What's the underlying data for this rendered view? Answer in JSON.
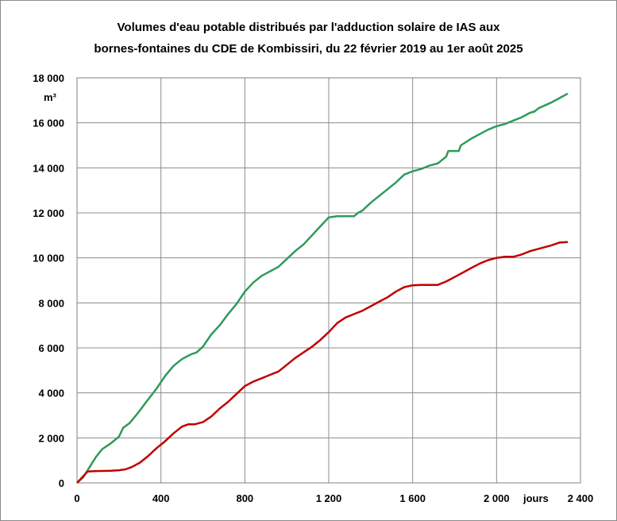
{
  "chart_data": {
    "type": "line",
    "title": "Volumes d'eau potable distribués par l'adduction solaire de IAS aux",
    "subtitle": "bornes-fontaines du CDE de Kombissiri, du 22 février 2019 au 1er août 2025",
    "xlabel": "jours",
    "ylabel": "m³",
    "xlim": [
      0,
      2400
    ],
    "ylim": [
      0,
      18000
    ],
    "x_ticks": [
      "0",
      "400",
      "800",
      "1 200",
      "1 600",
      "2 000",
      "2 400"
    ],
    "y_ticks": [
      "0",
      "2 000",
      "4 000",
      "6 000",
      "8 000",
      "10 000",
      "12 000",
      "14 000",
      "16 000",
      "18 000"
    ],
    "grid": true,
    "series": [
      {
        "color": "#2e9a5a",
        "x": [
          0,
          30,
          60,
          90,
          120,
          160,
          200,
          220,
          250,
          290,
          330,
          380,
          420,
          460,
          500,
          540,
          570,
          600,
          640,
          680,
          720,
          760,
          800,
          840,
          880,
          920,
          960,
          1000,
          1040,
          1080,
          1120,
          1160,
          1200,
          1240,
          1280,
          1320,
          1340,
          1360,
          1400,
          1440,
          1480,
          1520,
          1560,
          1600,
          1640,
          1680,
          1720,
          1760,
          1770,
          1820,
          1830,
          1880,
          1920,
          1960,
          2000,
          2040,
          2080,
          2120,
          2160,
          2180,
          2200,
          2260,
          2300,
          2340
        ],
        "y": [
          0,
          250,
          700,
          1150,
          1500,
          1750,
          2050,
          2450,
          2650,
          3100,
          3600,
          4200,
          4750,
          5200,
          5500,
          5700,
          5800,
          6050,
          6600,
          7000,
          7500,
          7950,
          8500,
          8900,
          9200,
          9400,
          9600,
          9950,
          10300,
          10600,
          11000,
          11400,
          11800,
          11850,
          11850,
          11850,
          12000,
          12100,
          12450,
          12750,
          13050,
          13350,
          13700,
          13850,
          13950,
          14100,
          14200,
          14500,
          14750,
          14750,
          15000,
          15300,
          15500,
          15700,
          15850,
          15950,
          16100,
          16250,
          16450,
          16500,
          16650,
          16900,
          17100,
          17300
        ]
      },
      {
        "color": "#c00000",
        "x": [
          0,
          20,
          50,
          80,
          120,
          160,
          200,
          230,
          260,
          300,
          340,
          380,
          420,
          460,
          500,
          530,
          560,
          600,
          640,
          680,
          720,
          760,
          800,
          840,
          880,
          920,
          960,
          1000,
          1040,
          1080,
          1120,
          1160,
          1200,
          1240,
          1280,
          1320,
          1360,
          1400,
          1440,
          1480,
          1520,
          1560,
          1600,
          1640,
          1680,
          1720,
          1760,
          1800,
          1840,
          1880,
          1920,
          1960,
          2000,
          2040,
          2080,
          2120,
          2160,
          2200,
          2260,
          2300,
          2340
        ],
        "y": [
          0,
          200,
          500,
          520,
          530,
          540,
          560,
          600,
          700,
          900,
          1200,
          1550,
          1850,
          2200,
          2500,
          2600,
          2600,
          2700,
          2950,
          3300,
          3600,
          3950,
          4300,
          4500,
          4650,
          4800,
          4950,
          5250,
          5550,
          5800,
          6050,
          6350,
          6700,
          7100,
          7350,
          7500,
          7650,
          7850,
          8050,
          8250,
          8500,
          8700,
          8780,
          8800,
          8800,
          8800,
          8950,
          9150,
          9350,
          9550,
          9750,
          9900,
          10000,
          10050,
          10050,
          10150,
          10300,
          10400,
          10550,
          10680,
          10700
        ]
      }
    ]
  }
}
